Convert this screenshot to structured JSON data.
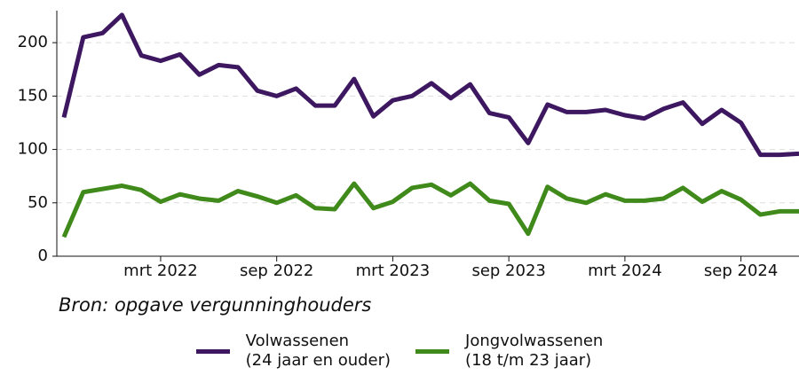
{
  "chart_data": {
    "type": "line",
    "source": "Bron: opgave vergunninghouders",
    "categories": [
      "",
      "",
      "",
      "",
      "",
      "mrt 2022",
      "",
      "",
      "",
      "",
      "",
      "sep 2022",
      "",
      "",
      "",
      "",
      "",
      "mrt 2023",
      "",
      "",
      "",
      "",
      "",
      "sep 2023",
      "",
      "",
      "",
      "",
      "",
      "mrt 2024",
      "",
      "",
      "",
      "",
      "",
      "sep 2024",
      "",
      "",
      ""
    ],
    "series": [
      {
        "name": "Volwassenen\n(24 jaar en ouder)",
        "color": "#3d1760",
        "values": [
          130,
          205,
          209,
          226,
          188,
          183,
          189,
          170,
          179,
          177,
          155,
          150,
          157,
          141,
          141,
          166,
          131,
          146,
          150,
          162,
          148,
          161,
          134,
          130,
          106,
          142,
          135,
          135,
          137,
          132,
          129,
          138,
          144,
          124,
          137,
          125,
          95,
          95,
          96
        ]
      },
      {
        "name": "Jongvolwassenen\n(18 t/m 23 jaar)",
        "color": "#3f8a1a",
        "values": [
          18,
          60,
          63,
          66,
          62,
          51,
          58,
          54,
          52,
          61,
          56,
          50,
          57,
          45,
          44,
          68,
          45,
          51,
          64,
          67,
          57,
          68,
          52,
          49,
          21,
          65,
          54,
          50,
          58,
          52,
          52,
          54,
          64,
          51,
          61,
          53,
          39,
          42,
          42
        ]
      }
    ],
    "ylim": [
      0,
      230
    ],
    "yticks": [
      0,
      50,
      100,
      150,
      200
    ],
    "grid": true
  }
}
